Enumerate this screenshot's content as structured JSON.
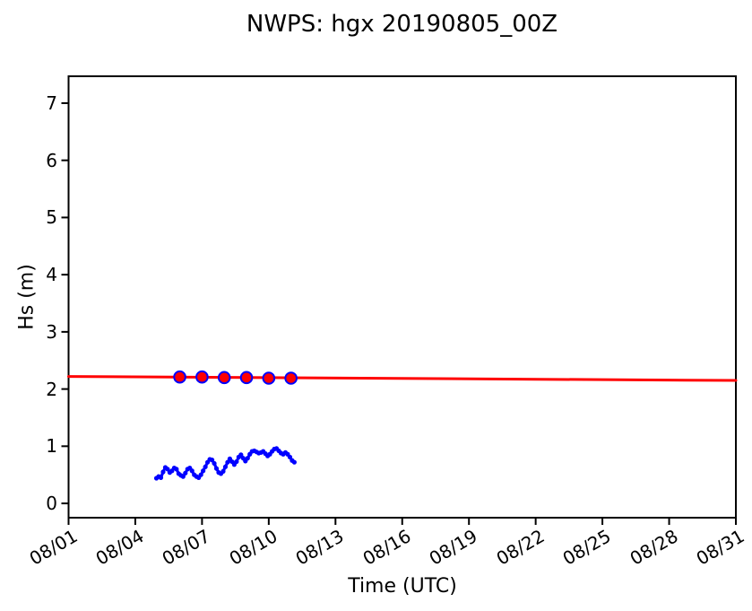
{
  "chart_data": {
    "type": "line",
    "title": "NWPS: hgx 20190805_00Z",
    "xlabel": "Time (UTC)",
    "ylabel": "Hs (m)",
    "grid": false,
    "legend": false,
    "background": "#ffffff",
    "axis_color": "#000000",
    "x_axis": {
      "unit": "days since 08/01 00Z",
      "min": 0,
      "max": 30,
      "tick_days": [
        0,
        3,
        6,
        9,
        12,
        15,
        18,
        21,
        24,
        27,
        30
      ],
      "tick_labels": [
        "08/01",
        "08/04",
        "08/07",
        "08/10",
        "08/13",
        "08/16",
        "08/19",
        "08/22",
        "08/25",
        "08/28",
        "08/31"
      ],
      "tick_label_rotation_deg": 30
    },
    "y_axis": {
      "min": -0.25,
      "max": 7.47,
      "ticks": [
        0,
        1,
        2,
        3,
        4,
        5,
        6,
        7
      ],
      "tick_labels": [
        "0",
        "1",
        "2",
        "3",
        "4",
        "5",
        "6",
        "7"
      ]
    },
    "series": [
      {
        "name": "forecast-line",
        "type": "line",
        "color": "#ff0000",
        "line_width": 3,
        "x_days": [
          0,
          30
        ],
        "values": [
          2.22,
          2.15
        ]
      },
      {
        "name": "forecast-markers",
        "type": "scatter",
        "marker": "circle",
        "marker_fill": "#ff0000",
        "marker_edge": "#0000ff",
        "marker_radius": 6.3,
        "dates": [
          "08/06",
          "08/07",
          "08/08",
          "08/09",
          "08/10",
          "08/11"
        ],
        "x_days": [
          5,
          6,
          7,
          8,
          9,
          10
        ],
        "values": [
          2.21,
          2.21,
          2.2,
          2.2,
          2.19,
          2.19
        ]
      },
      {
        "name": "observations",
        "type": "line-markers",
        "color": "#0000ff",
        "line_width": 3.2,
        "marker_radius": 2.6,
        "x_days": [
          3.95,
          4.05,
          4.15,
          4.25,
          4.35,
          4.45,
          4.55,
          4.65,
          4.75,
          4.85,
          4.95,
          5.05,
          5.15,
          5.25,
          5.35,
          5.45,
          5.55,
          5.65,
          5.75,
          5.85,
          5.95,
          6.05,
          6.15,
          6.25,
          6.35,
          6.45,
          6.55,
          6.65,
          6.75,
          6.85,
          6.95,
          7.05,
          7.15,
          7.25,
          7.35,
          7.45,
          7.55,
          7.65,
          7.75,
          7.85,
          7.95,
          8.05,
          8.15,
          8.25,
          8.35,
          8.45,
          8.55,
          8.65,
          8.75,
          8.85,
          8.95,
          9.05,
          9.15,
          9.25,
          9.35,
          9.45,
          9.55,
          9.65,
          9.75,
          9.85,
          9.95,
          10.05,
          10.15
        ],
        "values": [
          0.44,
          0.47,
          0.45,
          0.55,
          0.63,
          0.6,
          0.54,
          0.57,
          0.62,
          0.6,
          0.52,
          0.49,
          0.47,
          0.53,
          0.6,
          0.62,
          0.57,
          0.5,
          0.47,
          0.45,
          0.5,
          0.57,
          0.64,
          0.72,
          0.77,
          0.76,
          0.7,
          0.61,
          0.54,
          0.52,
          0.56,
          0.64,
          0.72,
          0.78,
          0.73,
          0.68,
          0.73,
          0.81,
          0.85,
          0.79,
          0.74,
          0.79,
          0.86,
          0.91,
          0.92,
          0.9,
          0.88,
          0.89,
          0.91,
          0.87,
          0.83,
          0.86,
          0.91,
          0.95,
          0.96,
          0.92,
          0.88,
          0.86,
          0.89,
          0.86,
          0.81,
          0.75,
          0.72
        ]
      }
    ]
  }
}
